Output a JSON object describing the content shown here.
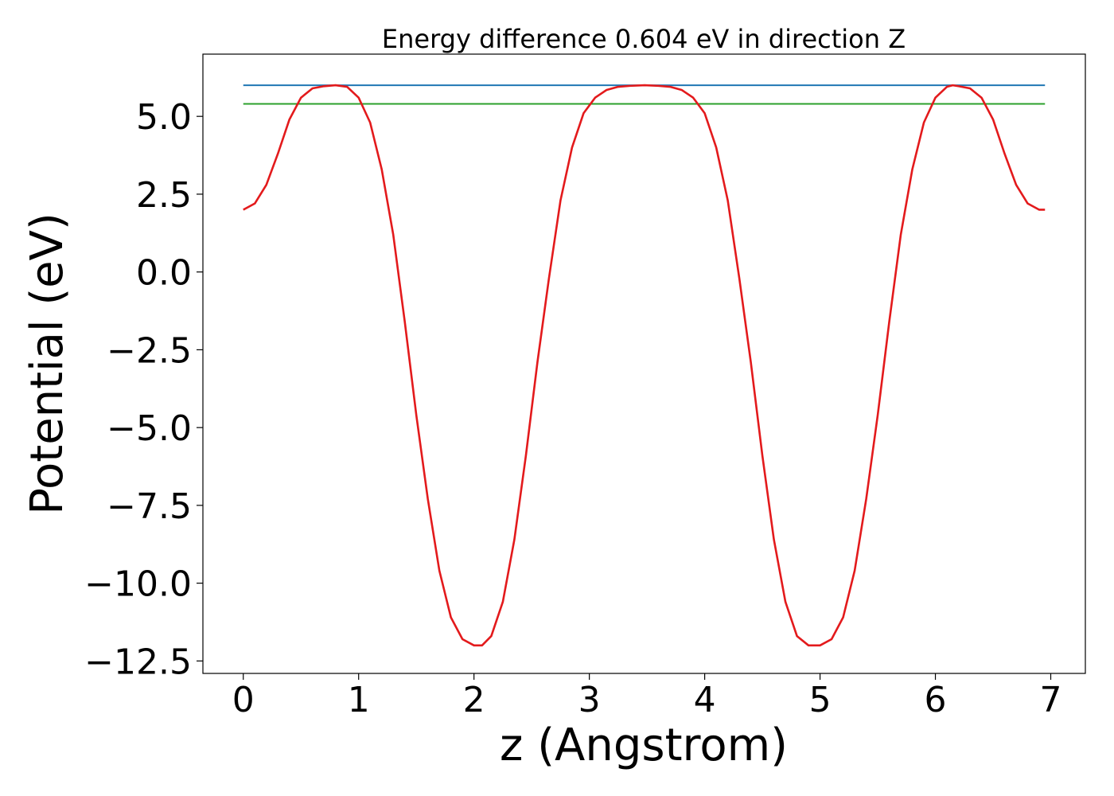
{
  "chart_data": {
    "type": "line",
    "title": "Energy difference 0.604 eV in direction Z",
    "xlabel": "z (Angstrom)",
    "ylabel": "Potential (eV)",
    "xlim": [
      -0.35,
      7.3
    ],
    "ylim": [
      -12.9,
      7.0
    ],
    "xticks": [
      0,
      1,
      2,
      3,
      4,
      5,
      6,
      7
    ],
    "xtick_labels": [
      "0",
      "1",
      "2",
      "3",
      "4",
      "5",
      "6",
      "7"
    ],
    "yticks": [
      5.0,
      2.5,
      0.0,
      -2.5,
      -5.0,
      -7.5,
      -10.0,
      -12.5
    ],
    "ytick_labels": [
      "5.0",
      "2.5",
      "0.0",
      "−2.5",
      "−5.0",
      "−7.5",
      "−10.0",
      "−12.5"
    ],
    "grid": false,
    "series": [
      {
        "color": "#1f77b4",
        "x": [
          0,
          6.95
        ],
        "y": [
          6.0,
          6.0
        ]
      },
      {
        "color": "#2ca02c",
        "x": [
          0,
          6.95
        ],
        "y": [
          5.4,
          5.4
        ]
      },
      {
        "color": "#e31a1c",
        "x": [
          0.0,
          0.1,
          0.2,
          0.3,
          0.4,
          0.5,
          0.6,
          0.7,
          0.8,
          0.9,
          1.0,
          1.1,
          1.2,
          1.3,
          1.4,
          1.5,
          1.6,
          1.7,
          1.8,
          1.9,
          2.0,
          2.07,
          2.15,
          2.25,
          2.35,
          2.45,
          2.55,
          2.65,
          2.75,
          2.85,
          2.95,
          3.05,
          3.15,
          3.25,
          3.35,
          3.48,
          3.6,
          3.7,
          3.8,
          3.9,
          4.0,
          4.1,
          4.2,
          4.3,
          4.4,
          4.5,
          4.6,
          4.7,
          4.8,
          4.9,
          5.0,
          5.1,
          5.2,
          5.3,
          5.4,
          5.5,
          5.6,
          5.7,
          5.8,
          5.9,
          6.0,
          6.1,
          6.15,
          6.2,
          6.3,
          6.4,
          6.5,
          6.6,
          6.7,
          6.8,
          6.9,
          6.95
        ],
        "y": [
          2.0,
          2.2,
          2.8,
          3.8,
          4.9,
          5.6,
          5.9,
          5.97,
          6.0,
          5.95,
          5.6,
          4.8,
          3.3,
          1.2,
          -1.6,
          -4.6,
          -7.3,
          -9.6,
          -11.1,
          -11.8,
          -12.0,
          -12.0,
          -11.7,
          -10.6,
          -8.6,
          -5.9,
          -2.9,
          -0.2,
          2.3,
          4.0,
          5.1,
          5.6,
          5.85,
          5.95,
          5.98,
          6.0,
          5.98,
          5.95,
          5.85,
          5.6,
          5.1,
          4.0,
          2.3,
          -0.2,
          -2.9,
          -5.9,
          -8.6,
          -10.6,
          -11.7,
          -12.0,
          -12.0,
          -11.8,
          -11.1,
          -9.6,
          -7.3,
          -4.6,
          -1.6,
          1.2,
          3.3,
          4.8,
          5.6,
          5.95,
          6.0,
          5.97,
          5.9,
          5.6,
          4.9,
          3.8,
          2.8,
          2.2,
          2.0,
          2.0
        ]
      }
    ]
  }
}
